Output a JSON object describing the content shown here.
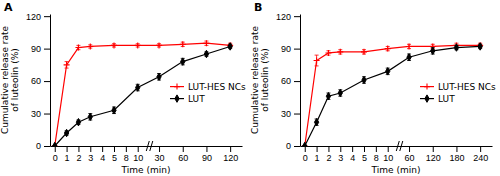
{
  "chart_data": [
    {
      "type": "line",
      "title": "A",
      "x_label": "Time (min)",
      "y_label": "Cumulative release rate\nof luteolin (%)",
      "x": [
        0,
        1,
        2,
        3,
        5,
        10,
        30,
        60,
        90,
        120
      ],
      "series": [
        {
          "name": "LUT-HES NCs",
          "color": "#ff0000",
          "marker": "plus",
          "values": [
            0,
            75,
            91,
            92,
            93,
            93,
            93,
            94,
            95,
            93
          ],
          "errors": [
            0,
            3,
            2,
            1.5,
            1.5,
            1.5,
            1.5,
            2,
            2,
            2
          ]
        },
        {
          "name": "LUT",
          "color": "#000000",
          "marker": "diamond",
          "values": [
            0,
            12,
            22,
            27,
            33,
            54,
            64,
            78,
            85,
            92
          ],
          "errors": [
            0,
            2,
            2,
            3,
            3,
            3,
            3,
            3,
            2,
            2
          ]
        }
      ],
      "xlim": [
        -0.4,
        135
      ],
      "xticks": [
        0,
        1,
        2,
        3,
        4,
        5,
        8,
        10,
        30,
        60,
        90,
        120
      ],
      "ylim": [
        0,
        122
      ],
      "yticks": [
        0,
        30,
        60,
        90,
        120
      ],
      "grid": false,
      "legend": "right"
    },
    {
      "type": "line",
      "title": "B",
      "x_label": "Time (min)",
      "y_label": "Cumulative release rate\nof luteolin (%)",
      "x": [
        0,
        1,
        2,
        3,
        5,
        10,
        60,
        120,
        180,
        240
      ],
      "series": [
        {
          "name": "LUT-HES NCs",
          "color": "#ff0000",
          "marker": "plus",
          "values": [
            0,
            79,
            86,
            87,
            87,
            90,
            92,
            92,
            93,
            93
          ],
          "errors": [
            0,
            5,
            2,
            2,
            2,
            2,
            2,
            2,
            2,
            2
          ]
        },
        {
          "name": "LUT",
          "color": "#000000",
          "marker": "diamond",
          "values": [
            0,
            22,
            46,
            49,
            61,
            69,
            82,
            88,
            91,
            92
          ],
          "errors": [
            0,
            3,
            3,
            3,
            3,
            3,
            3,
            3,
            2,
            2
          ]
        }
      ],
      "xlim": [
        -0.4,
        270
      ],
      "xticks": [
        0,
        1,
        2,
        3,
        4,
        5,
        8,
        10,
        60,
        120,
        180,
        240
      ],
      "ylim": [
        0,
        122
      ],
      "yticks": [
        0,
        30,
        60,
        90,
        120
      ],
      "grid": false,
      "legend": "right"
    }
  ]
}
